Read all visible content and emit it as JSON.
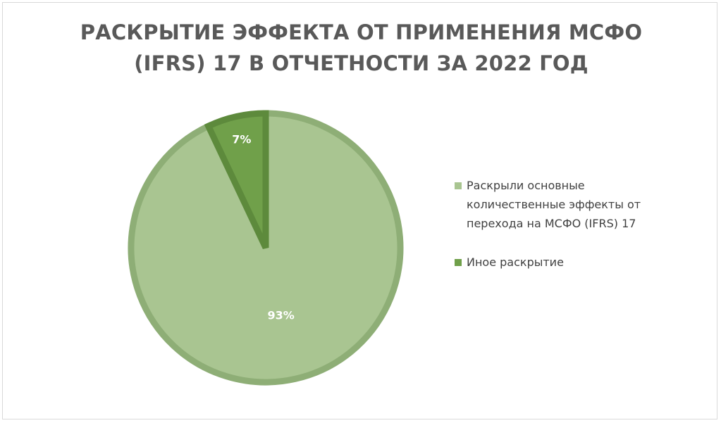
{
  "chart_data": {
    "type": "pie",
    "title_lines": [
      "РАСКРЫТИЕ ЭФФЕКТА ОТ ПРИМЕНЕНИЯ МСФО",
      "(IFRS) 17 В ОТЧЕТНОСТИ ЗА 2022 ГОД"
    ],
    "slices": [
      {
        "label": "Раскрыли основные количественные эффекты от перехода на МСФО (IFRS) 17",
        "value": 93,
        "data_label": "93%",
        "color": "#a9c591",
        "border_color": "#8eae76"
      },
      {
        "label": "Иное раскрытие",
        "value": 7,
        "data_label": "7%",
        "color": "#70a04a",
        "border_color": "#5d8a3c"
      }
    ],
    "legend_position": "right"
  }
}
